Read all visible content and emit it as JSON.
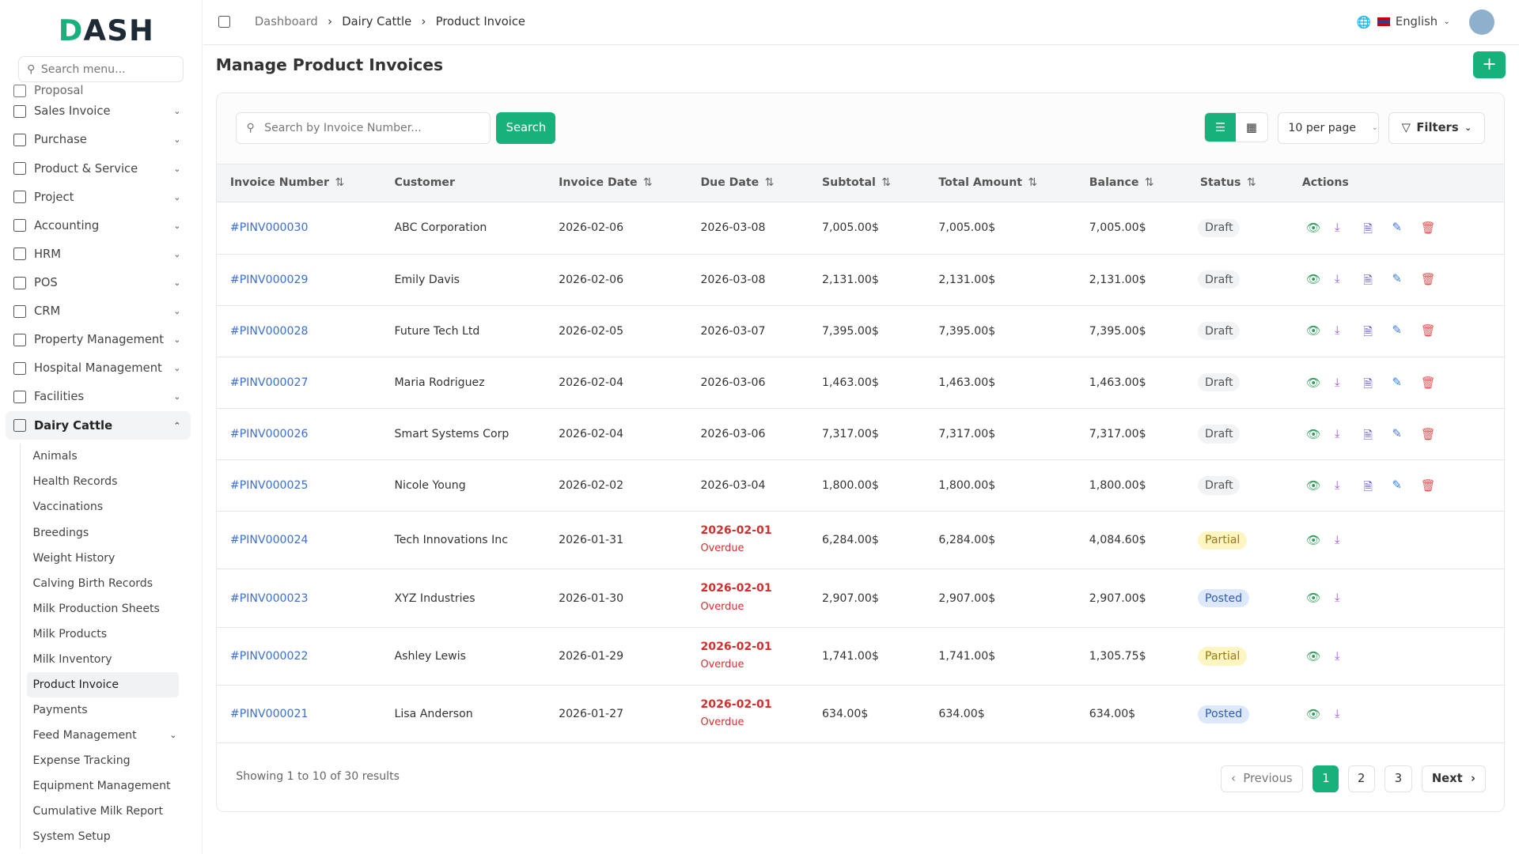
{
  "brand": {
    "logo": "DASH"
  },
  "sidebar": {
    "search_placeholder": "Search menu...",
    "items": [
      {
        "label": "Proposal",
        "icon": "proposal-icon"
      },
      {
        "label": "Sales Invoice",
        "icon": "invoice-icon"
      },
      {
        "label": "Purchase",
        "icon": "cart-icon"
      },
      {
        "label": "Product & Service",
        "icon": "layers-icon"
      },
      {
        "label": "Project",
        "icon": "folder-icon"
      },
      {
        "label": "Accounting",
        "icon": "calculator-icon"
      },
      {
        "label": "HRM",
        "icon": "users-icon"
      },
      {
        "label": "POS",
        "icon": "store-icon"
      },
      {
        "label": "CRM",
        "icon": "contact-icon"
      },
      {
        "label": "Property Management",
        "icon": "property-icon"
      },
      {
        "label": "Hospital Management",
        "icon": "stethoscope-icon"
      },
      {
        "label": "Facilities",
        "icon": "building-icon"
      },
      {
        "label": "Dairy Cattle",
        "icon": "bottle-icon",
        "active": true
      }
    ],
    "subitems": [
      "Animals",
      "Health Records",
      "Vaccinations",
      "Breedings",
      "Weight History",
      "Calving Birth Records",
      "Milk Production Sheets",
      "Milk Products",
      "Milk Inventory",
      "Product Invoice",
      "Payments",
      "Feed Management",
      "Expense Tracking",
      "Equipment Management",
      "Cumulative Milk Report",
      "System Setup"
    ],
    "active_subitem": "Product Invoice"
  },
  "header": {
    "breadcrumb": [
      "Dashboard",
      "Dairy Cattle",
      "Product Invoice"
    ],
    "language": "English"
  },
  "page": {
    "title": "Manage Product Invoices"
  },
  "toolbar": {
    "search_placeholder": "Search by Invoice Number...",
    "search_label": "Search",
    "per_page": "10 per page",
    "filters_label": "Filters"
  },
  "table": {
    "columns": [
      "Invoice Number",
      "Customer",
      "Invoice Date",
      "Due Date",
      "Subtotal",
      "Total Amount",
      "Balance",
      "Status",
      "Actions"
    ],
    "rows": [
      {
        "invoice": "#PINV000030",
        "customer": "ABC Corporation",
        "date": "2026-02-06",
        "due": "2026-03-08",
        "subtotal": "7,005.00$",
        "total": "7,005.00$",
        "balance": "7,005.00$",
        "status": "Draft"
      },
      {
        "invoice": "#PINV000029",
        "customer": "Emily Davis",
        "date": "2026-02-06",
        "due": "2026-03-08",
        "subtotal": "2,131.00$",
        "total": "2,131.00$",
        "balance": "2,131.00$",
        "status": "Draft"
      },
      {
        "invoice": "#PINV000028",
        "customer": "Future Tech Ltd",
        "date": "2026-02-05",
        "due": "2026-03-07",
        "subtotal": "7,395.00$",
        "total": "7,395.00$",
        "balance": "7,395.00$",
        "status": "Draft"
      },
      {
        "invoice": "#PINV000027",
        "customer": "Maria Rodriguez",
        "date": "2026-02-04",
        "due": "2026-03-06",
        "subtotal": "1,463.00$",
        "total": "1,463.00$",
        "balance": "1,463.00$",
        "status": "Draft"
      },
      {
        "invoice": "#PINV000026",
        "customer": "Smart Systems Corp",
        "date": "2026-02-04",
        "due": "2026-03-06",
        "subtotal": "7,317.00$",
        "total": "7,317.00$",
        "balance": "7,317.00$",
        "status": "Draft"
      },
      {
        "invoice": "#PINV000025",
        "customer": "Nicole Young",
        "date": "2026-02-02",
        "due": "2026-03-04",
        "subtotal": "1,800.00$",
        "total": "1,800.00$",
        "balance": "1,800.00$",
        "status": "Draft"
      },
      {
        "invoice": "#PINV000024",
        "customer": "Tech Innovations Inc",
        "date": "2026-01-31",
        "due": "2026-02-01",
        "overdue": "Overdue",
        "subtotal": "6,284.00$",
        "total": "6,284.00$",
        "balance": "4,084.60$",
        "status": "Partial"
      },
      {
        "invoice": "#PINV000023",
        "customer": "XYZ Industries",
        "date": "2026-01-30",
        "due": "2026-02-01",
        "overdue": "Overdue",
        "subtotal": "2,907.00$",
        "total": "2,907.00$",
        "balance": "2,907.00$",
        "status": "Posted"
      },
      {
        "invoice": "#PINV000022",
        "customer": "Ashley Lewis",
        "date": "2026-01-29",
        "due": "2026-02-01",
        "overdue": "Overdue",
        "subtotal": "1,741.00$",
        "total": "1,741.00$",
        "balance": "1,305.75$",
        "status": "Partial"
      },
      {
        "invoice": "#PINV000021",
        "customer": "Lisa Anderson",
        "date": "2026-01-27",
        "due": "2026-02-01",
        "overdue": "Overdue",
        "subtotal": "634.00$",
        "total": "634.00$",
        "balance": "634.00$",
        "status": "Posted"
      }
    ]
  },
  "pagination": {
    "summary": "Showing 1 to 10 of 30 results",
    "previous": "Previous",
    "pages": [
      "1",
      "2",
      "3"
    ],
    "current": "1",
    "next": "Next"
  },
  "colors": {
    "accent": "#17b17b",
    "link": "#3b6fd6",
    "overdue": "#d32f2f",
    "view": "#2e9e5b",
    "download": "#9b59d6",
    "doc": "#5b4fc7",
    "edit": "#3b7be0",
    "delete": "#e05252"
  }
}
